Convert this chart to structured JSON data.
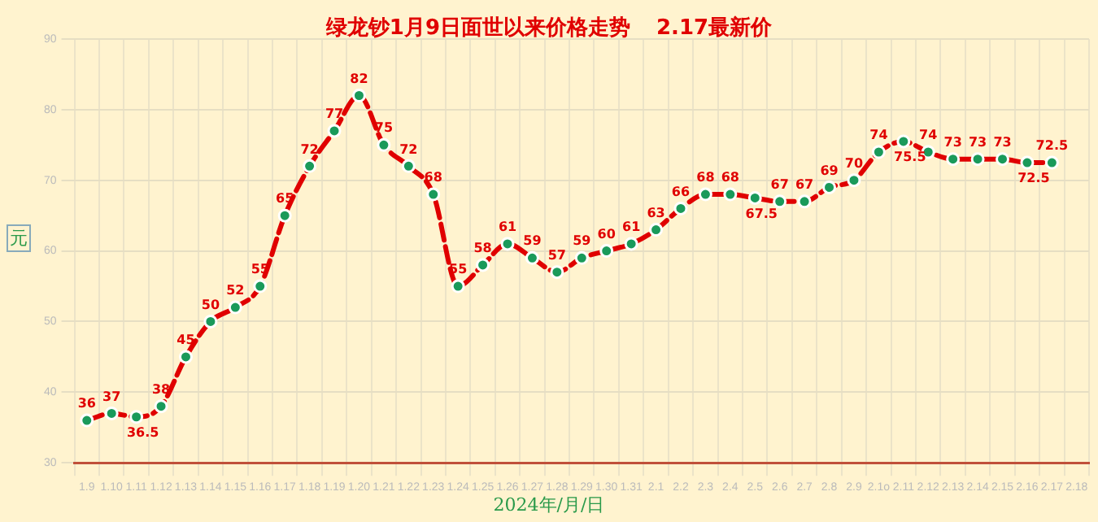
{
  "chart_data": {
    "type": "line",
    "title": "绿龙钞1月9日面世以来价格走势",
    "subtitle": "2.17最新价",
    "xlabel": "2024年/月/日",
    "ylabel": "元",
    "categories": [
      "1.9",
      "1.10",
      "1.11",
      "1.12",
      "1.13",
      "1.14",
      "1.15",
      "1.16",
      "1.17",
      "1.18",
      "1.19",
      "1.20",
      "1.21",
      "1.22",
      "1.23",
      "1.24",
      "1.25",
      "1.26",
      "1.27",
      "1.28",
      "1.29",
      "1.30",
      "1.31",
      "2.1",
      "2.2",
      "2.3",
      "2.4",
      "2.5",
      "2.6",
      "2.7",
      "2.8",
      "2.9",
      "2.1o",
      "2.11",
      "2.12",
      "2.13",
      "2.14",
      "2.15",
      "2.16",
      "2.17",
      "2.18"
    ],
    "series": [
      {
        "color": "#e00000",
        "values": [
          36,
          37,
          36.5,
          38,
          45,
          50,
          52,
          55,
          65,
          72,
          77,
          82,
          75,
          72,
          68,
          55,
          58,
          61,
          59,
          57,
          59,
          60,
          61,
          63,
          66,
          68,
          68,
          67.5,
          67,
          67,
          69,
          70,
          74,
          75.5,
          74,
          73,
          73,
          73,
          72.5,
          72.5,
          null
        ]
      }
    ],
    "ylim": [
      30,
      90
    ],
    "yticks": [
      30,
      40,
      50,
      60,
      70,
      80,
      90
    ],
    "grid": true,
    "legend": false,
    "marker": "circle",
    "line_style": "dashed",
    "data_labels": true
  }
}
